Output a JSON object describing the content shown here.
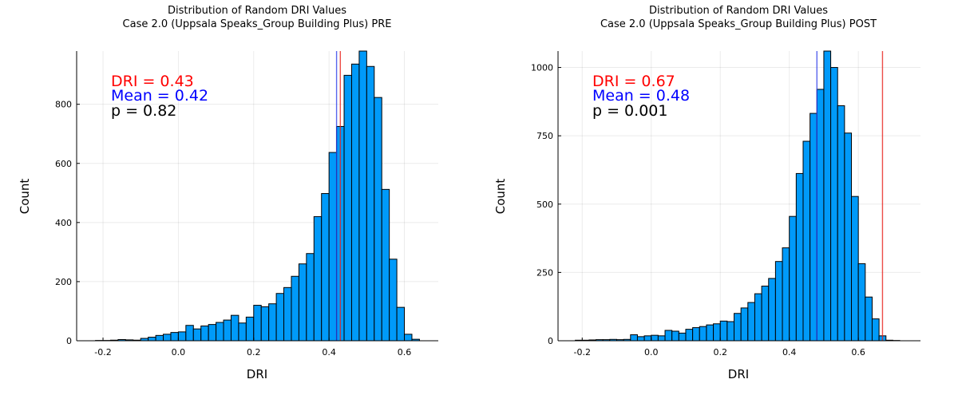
{
  "chart_data": [
    {
      "type": "bar",
      "panel": "pre",
      "title": "Distribution of Random DRI Values",
      "subtitle": "Case 2.0 (Uppsala Speaks_Group Building Plus) PRE",
      "xlabel": "DRI",
      "ylabel": "Count",
      "xlim": [
        -0.27,
        0.69
      ],
      "ylim": [
        0,
        980
      ],
      "xticks": [
        -0.2,
        0.0,
        0.2,
        0.4,
        0.6
      ],
      "xtick_labels": [
        "-0.2",
        "0.0",
        "0.2",
        "0.4",
        "0.6"
      ],
      "yticks": [
        0,
        200,
        400,
        600,
        800
      ],
      "ytick_labels": [
        "0",
        "200",
        "400",
        "600",
        "800"
      ],
      "grid": true,
      "legend": "none",
      "bar_color": "#009af9",
      "bin_width": 0.02,
      "bin_starts": [
        -0.22,
        -0.2,
        -0.18,
        -0.16,
        -0.14,
        -0.12,
        -0.1,
        -0.08,
        -0.06,
        -0.04,
        -0.02,
        0.0,
        0.02,
        0.04,
        0.06,
        0.08,
        0.1,
        0.12,
        0.14,
        0.16,
        0.18,
        0.2,
        0.22,
        0.24,
        0.26,
        0.28,
        0.3,
        0.32,
        0.34,
        0.36,
        0.38,
        0.4,
        0.42,
        0.44,
        0.46,
        0.48,
        0.5,
        0.52,
        0.54,
        0.56,
        0.58,
        0.6,
        0.62
      ],
      "values": [
        1,
        1,
        2,
        4,
        3,
        2,
        8,
        12,
        18,
        22,
        28,
        30,
        52,
        40,
        50,
        55,
        62,
        70,
        86,
        60,
        80,
        120,
        115,
        125,
        160,
        180,
        218,
        260,
        295,
        420,
        498,
        637,
        725,
        898,
        936,
        980,
        928,
        823,
        512,
        276,
        113,
        22,
        5
      ],
      "vlines": [
        {
          "x": 0.43,
          "color": "#e8201a"
        },
        {
          "x": 0.42,
          "color": "#2f3fe8"
        }
      ],
      "annotations": [
        {
          "text": "DRI = 0.43",
          "color": "#ff0000"
        },
        {
          "text": "Mean = 0.42",
          "color": "#0000ff"
        },
        {
          "text": "p = 0.82",
          "color": "#000000"
        }
      ]
    },
    {
      "type": "bar",
      "panel": "post",
      "title": "Distribution of Random DRI Values",
      "subtitle": "Case 2.0 (Uppsala Speaks_Group Building Plus) POST",
      "xlabel": "DRI",
      "ylabel": "Count",
      "xlim": [
        -0.27,
        0.78
      ],
      "ylim": [
        0,
        1060
      ],
      "xticks": [
        -0.2,
        0.0,
        0.2,
        0.4,
        0.6
      ],
      "xtick_labels": [
        "-0.2",
        "0.0",
        "0.2",
        "0.4",
        "0.6"
      ],
      "yticks": [
        0,
        250,
        500,
        750,
        1000
      ],
      "ytick_labels": [
        "0",
        "250",
        "500",
        "750",
        "1000"
      ],
      "grid": true,
      "legend": "none",
      "bar_color": "#009af9",
      "bin_width": 0.02,
      "bin_starts": [
        -0.22,
        -0.2,
        -0.18,
        -0.16,
        -0.14,
        -0.12,
        -0.1,
        -0.08,
        -0.06,
        -0.04,
        -0.02,
        0.0,
        0.02,
        0.04,
        0.06,
        0.08,
        0.1,
        0.12,
        0.14,
        0.16,
        0.18,
        0.2,
        0.22,
        0.24,
        0.26,
        0.28,
        0.3,
        0.32,
        0.34,
        0.36,
        0.38,
        0.4,
        0.42,
        0.44,
        0.46,
        0.48,
        0.5,
        0.52,
        0.54,
        0.56,
        0.58,
        0.6,
        0.62,
        0.64,
        0.66,
        0.68,
        0.7
      ],
      "values": [
        2,
        2,
        3,
        4,
        4,
        5,
        4,
        5,
        22,
        15,
        18,
        20,
        18,
        38,
        35,
        28,
        42,
        48,
        52,
        58,
        62,
        72,
        70,
        100,
        120,
        140,
        172,
        200,
        228,
        290,
        340,
        455,
        612,
        730,
        832,
        920,
        1060,
        1000,
        860,
        760,
        528,
        282,
        160,
        80,
        18,
        2,
        1
      ],
      "vlines": [
        {
          "x": 0.67,
          "color": "#e8201a"
        },
        {
          "x": 0.48,
          "color": "#2f3fe8"
        }
      ],
      "annotations": [
        {
          "text": "DRI = 0.67",
          "color": "#ff0000"
        },
        {
          "text": "Mean = 0.48",
          "color": "#0000ff"
        },
        {
          "text": "p = 0.001",
          "color": "#000000"
        }
      ]
    }
  ]
}
